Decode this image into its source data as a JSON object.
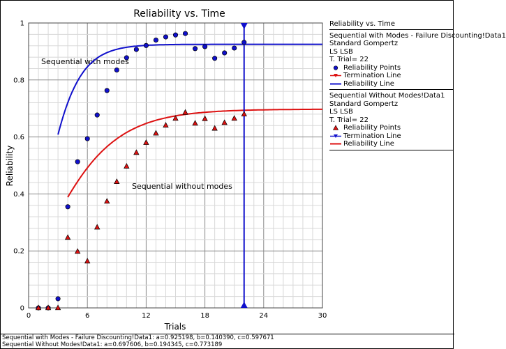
{
  "chart_data": {
    "type": "scatter",
    "title": "Reliability vs. Time",
    "xlabel": "Trials",
    "ylabel": "Reliability",
    "xlim": [
      0,
      30
    ],
    "ylim": [
      0,
      1
    ],
    "x_ticks": [
      "0",
      "6",
      "12",
      "18",
      "24",
      "30"
    ],
    "y_ticks": [
      "0",
      "0.2",
      "0.4",
      "0.6",
      "0.8",
      "1"
    ],
    "grid": true,
    "annotations": [
      "Sequential with modes",
      "Sequential without modes"
    ],
    "termination_trial": 22,
    "series": [
      {
        "name": "Sequential with Modes - Failure Discounting!Data1",
        "color": "#1010cc",
        "marker": "circle",
        "points": [
          {
            "x": 1,
            "y": 0.0
          },
          {
            "x": 2,
            "y": 0.0
          },
          {
            "x": 3,
            "y": 0.032
          },
          {
            "x": 4,
            "y": 0.355
          },
          {
            "x": 5,
            "y": 0.513
          },
          {
            "x": 6,
            "y": 0.594
          },
          {
            "x": 7,
            "y": 0.677
          },
          {
            "x": 8,
            "y": 0.763
          },
          {
            "x": 9,
            "y": 0.835
          },
          {
            "x": 10,
            "y": 0.878
          },
          {
            "x": 11,
            "y": 0.907
          },
          {
            "x": 12,
            "y": 0.921
          },
          {
            "x": 13,
            "y": 0.94
          },
          {
            "x": 14,
            "y": 0.951
          },
          {
            "x": 15,
            "y": 0.958
          },
          {
            "x": 16,
            "y": 0.963
          },
          {
            "x": 17,
            "y": 0.91
          },
          {
            "x": 18,
            "y": 0.917
          },
          {
            "x": 19,
            "y": 0.876
          },
          {
            "x": 20,
            "y": 0.895
          },
          {
            "x": 21,
            "y": 0.912
          },
          {
            "x": 22,
            "y": 0.932
          }
        ],
        "curve": {
          "model": "Standard Gompertz",
          "a": 0.925198,
          "b": 0.14039,
          "c": 0.597671,
          "x_start": 3,
          "x_end": 30
        }
      },
      {
        "name": "Sequential Without Modes!Data1",
        "color": "#dd1111",
        "marker": "triangle",
        "points": [
          {
            "x": 1,
            "y": 0.0
          },
          {
            "x": 2,
            "y": 0.0
          },
          {
            "x": 3,
            "y": 0.0
          },
          {
            "x": 4,
            "y": 0.247
          },
          {
            "x": 5,
            "y": 0.198
          },
          {
            "x": 6,
            "y": 0.164
          },
          {
            "x": 7,
            "y": 0.283
          },
          {
            "x": 8,
            "y": 0.374
          },
          {
            "x": 9,
            "y": 0.443
          },
          {
            "x": 10,
            "y": 0.497
          },
          {
            "x": 11,
            "y": 0.545
          },
          {
            "x": 12,
            "y": 0.58
          },
          {
            "x": 13,
            "y": 0.613
          },
          {
            "x": 14,
            "y": 0.641
          },
          {
            "x": 15,
            "y": 0.665
          },
          {
            "x": 16,
            "y": 0.686
          },
          {
            "x": 17,
            "y": 0.648
          },
          {
            "x": 18,
            "y": 0.664
          },
          {
            "x": 19,
            "y": 0.63
          },
          {
            "x": 20,
            "y": 0.65
          },
          {
            "x": 21,
            "y": 0.665
          },
          {
            "x": 22,
            "y": 0.68
          }
        ],
        "curve": {
          "model": "Standard Gompertz",
          "a": 0.697606,
          "b": 0.194345,
          "c": 0.773189,
          "x_start": 4,
          "x_end": 30
        }
      }
    ]
  },
  "legend": {
    "title": "Reliability vs. Time",
    "groups": [
      {
        "lines": [
          "Sequential with Modes - Failure Discounting!Data1",
          "Standard Gompertz",
          "LS LSB",
          "T. Trial= 22"
        ],
        "entries": [
          {
            "label": "Reliability Points",
            "symbol": "dot",
            "color": "#1010cc"
          },
          {
            "label": "Termination Line",
            "symbol": "term",
            "color": "#dd1111"
          },
          {
            "label": "Reliability Line",
            "symbol": "line",
            "color": "#1010cc"
          }
        ]
      },
      {
        "lines": [
          "Sequential Without Modes!Data1",
          "Standard Gompertz",
          "LS LSB",
          "T. Trial= 22"
        ],
        "entries": [
          {
            "label": "Reliability Points",
            "symbol": "tri",
            "color": "#dd1111"
          },
          {
            "label": "Termination Line",
            "symbol": "term",
            "color": "#1010cc"
          },
          {
            "label": "Reliability Line",
            "symbol": "line",
            "color": "#dd1111"
          }
        ]
      }
    ]
  },
  "footer": {
    "line1": "Sequential with Modes - Failure Discounting!Data1: a=0.925198, b=0.140390, c=0.597671",
    "line2": "Sequential Without Modes!Data1: a=0.697606, b=0.194345, c=0.773189"
  }
}
